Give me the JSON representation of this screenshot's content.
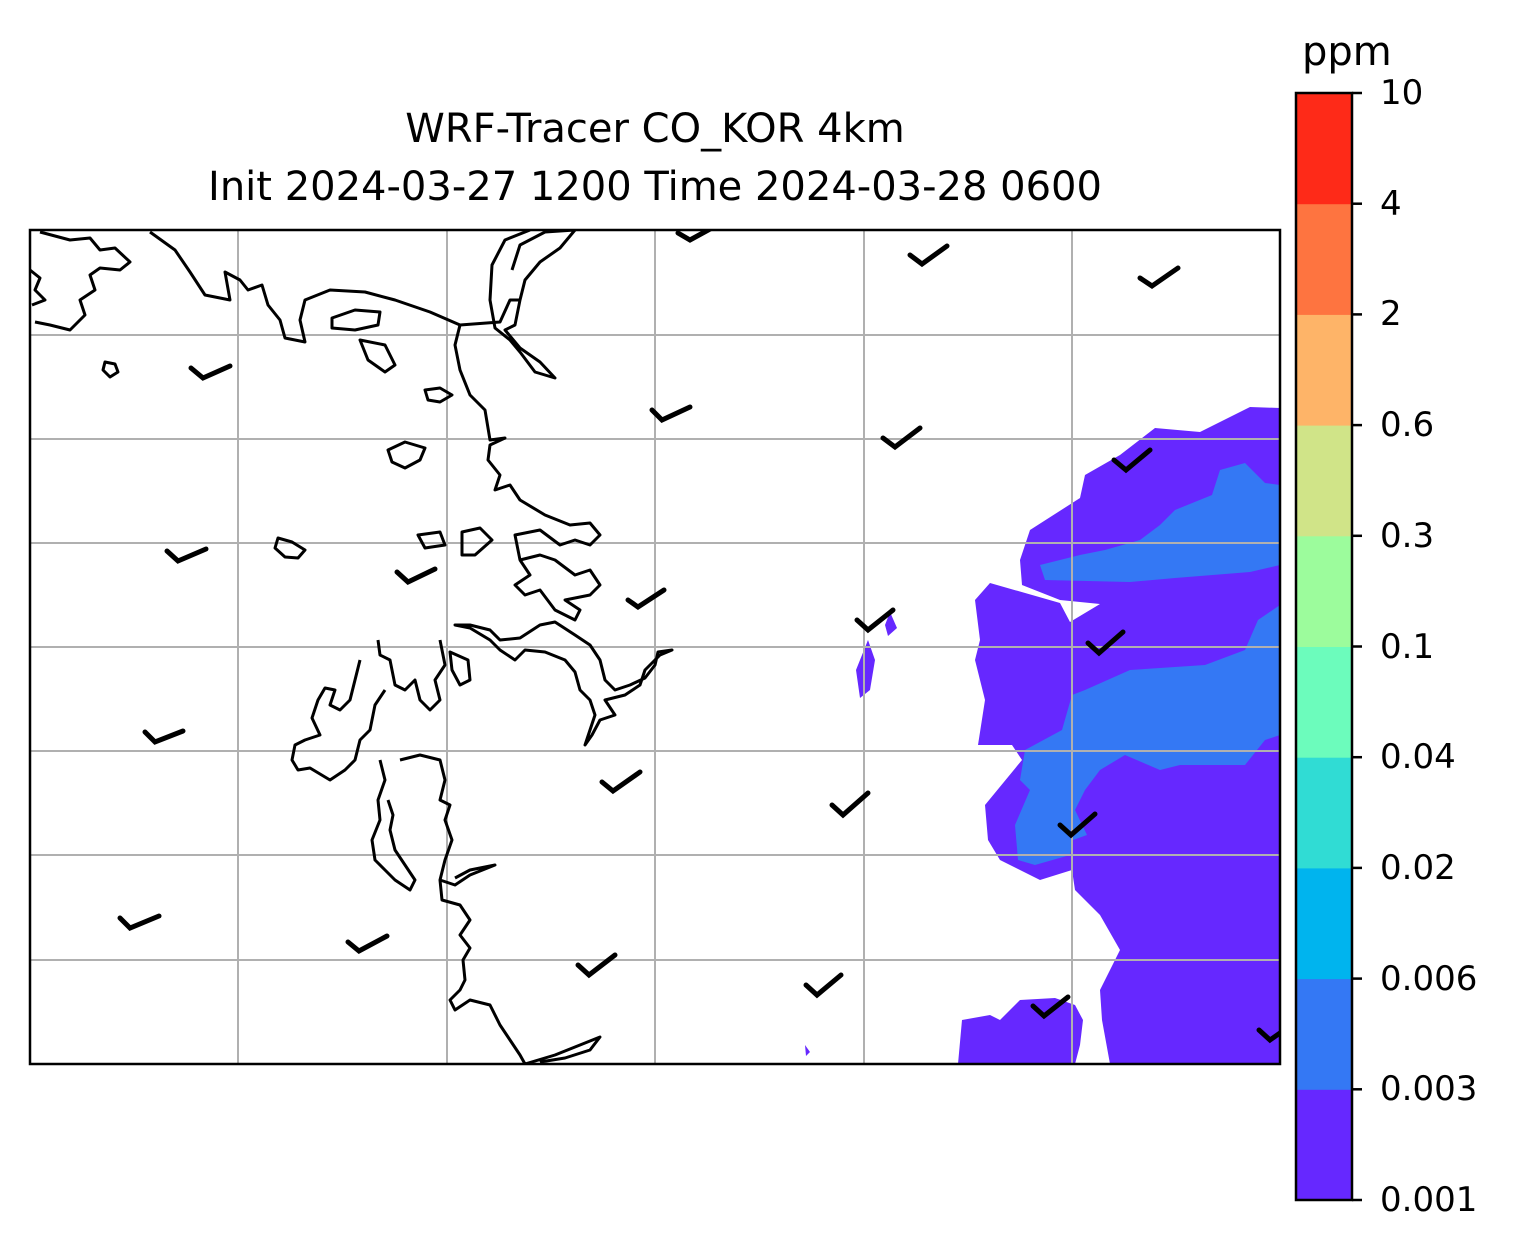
{
  "title": {
    "line1": "WRF-Tracer CO_KOR 4km",
    "line2": "Init 2024-03-27 1200 Time 2024-03-28 0600"
  },
  "colorbar": {
    "unit": "ppm",
    "levels": [
      "0.001",
      "0.003",
      "0.006",
      "0.02",
      "0.04",
      "0.1",
      "0.3",
      "0.6",
      "2",
      "4",
      "10"
    ],
    "colors": [
      "#6628ff",
      "#3478f4",
      "#00b4ee",
      "#30dcd4",
      "#6cfcbc",
      "#9cfc9c",
      "#d0e488",
      "#feb468",
      "#fe7440",
      "#fe2a18"
    ]
  },
  "map": {
    "gridlines": true,
    "coastline_color": "#000000",
    "gridline_color": "#b0b0b0",
    "overlay": "wind barbs"
  }
}
